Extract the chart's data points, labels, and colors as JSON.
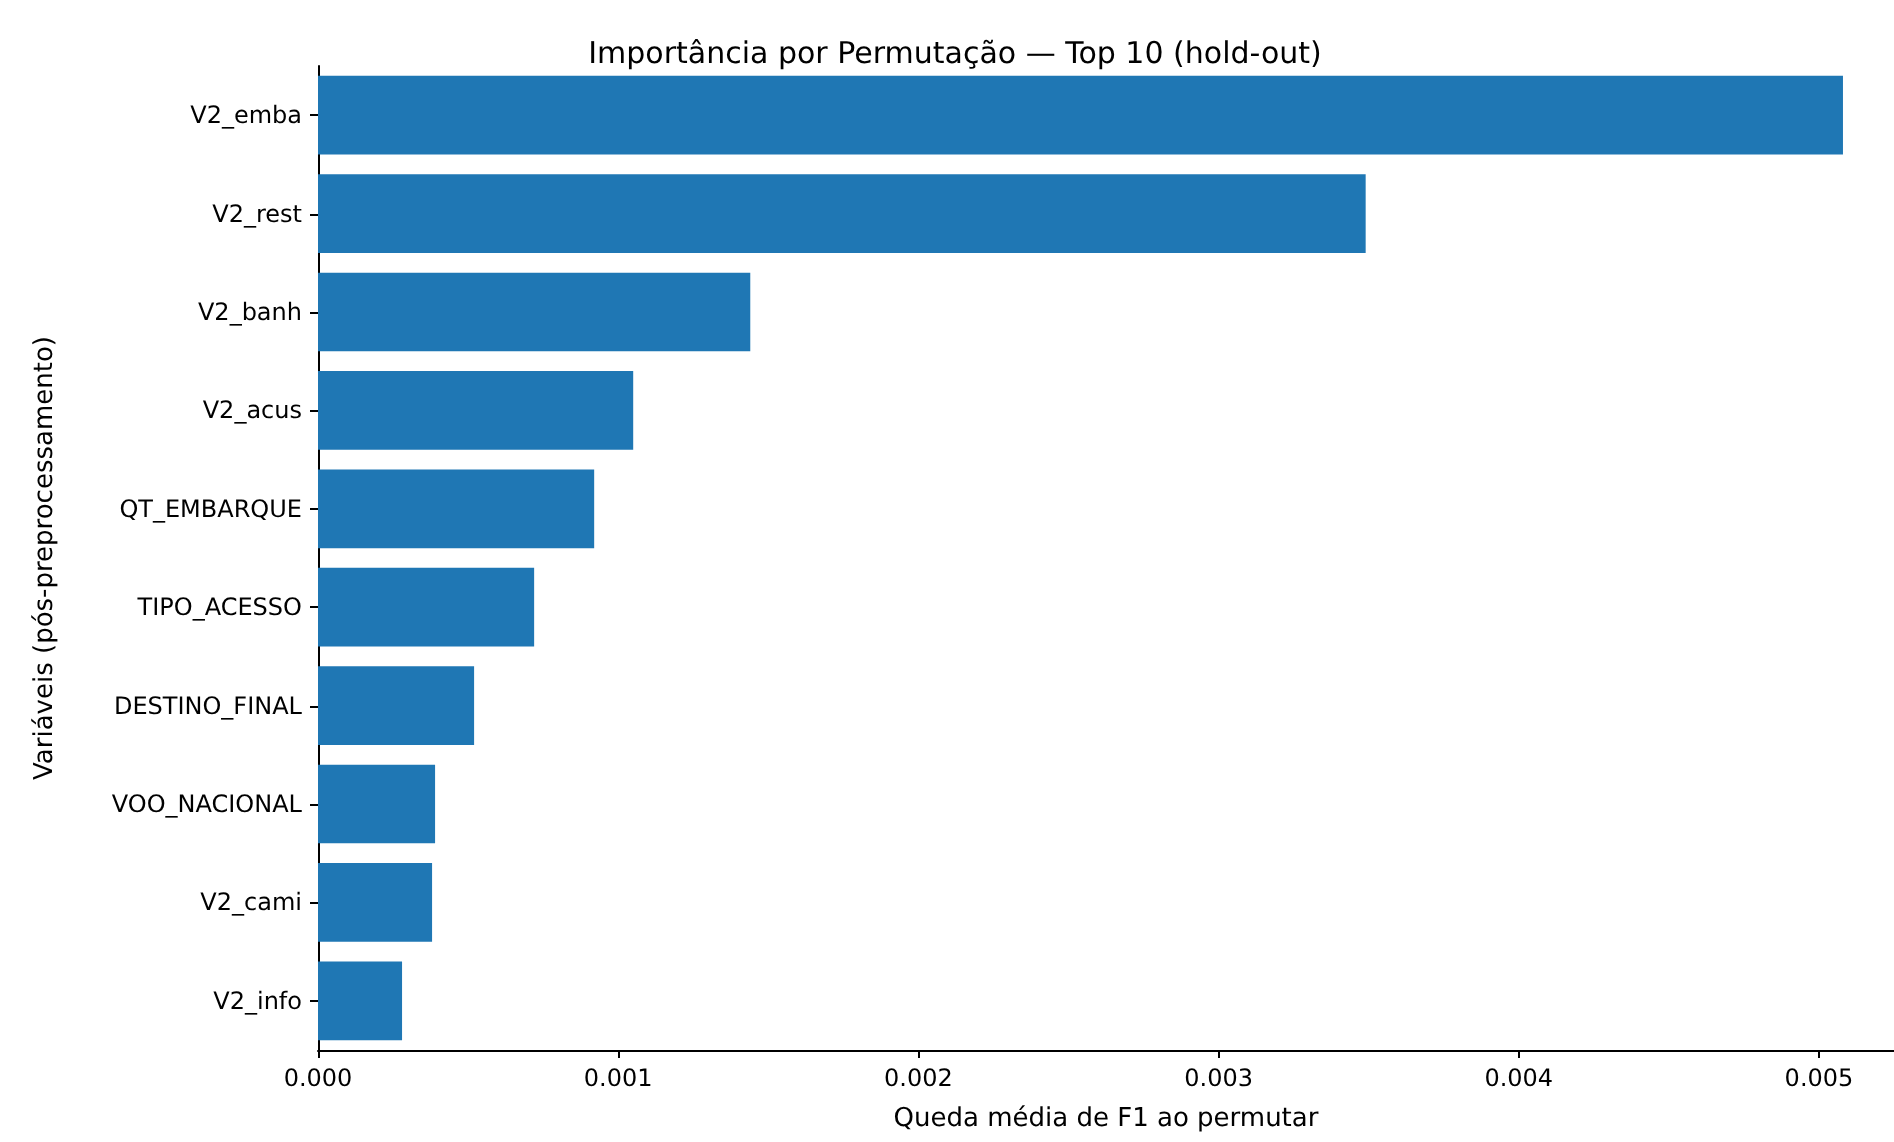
{
  "chart_data": {
    "type": "bar",
    "orientation": "horizontal",
    "title": "Importância por Permutação — Top 10 (hold-out)",
    "xlabel": "Queda média de F1 ao permutar",
    "ylabel": "Variáveis (pós-preprocessamento)",
    "categories": [
      "V2_emba",
      "V2_rest",
      "V2_banh",
      "V2_acus",
      "QT_EMBARQUE",
      "TIPO_ACESSO",
      "DESTINO_FINAL",
      "VOO_NACIONAL",
      "V2_cami",
      "V2_info"
    ],
    "values": [
      0.00508,
      0.00349,
      0.00144,
      0.00105,
      0.00092,
      0.00072,
      0.00052,
      0.00039,
      0.00038,
      0.00028
    ],
    "color": "#1f77b4",
    "xlim": [
      0,
      0.00525
    ],
    "xticks": [
      {
        "value": 0,
        "label": "0.000"
      },
      {
        "value": 0.001,
        "label": "0.001"
      },
      {
        "value": 0.002,
        "label": "0.002"
      },
      {
        "value": 0.003,
        "label": "0.003"
      },
      {
        "value": 0.004,
        "label": "0.004"
      },
      {
        "value": 0.005,
        "label": "0.005"
      }
    ],
    "grid": false
  }
}
